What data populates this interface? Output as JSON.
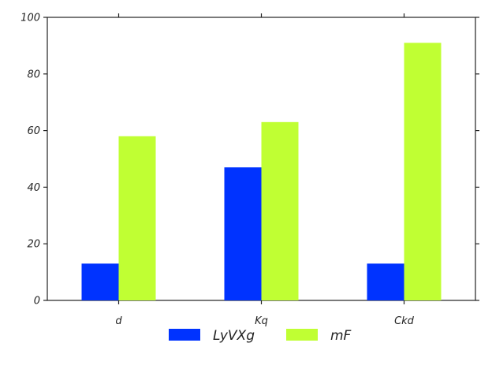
{
  "chart_data": {
    "type": "bar",
    "categories": [
      "d",
      "Kq",
      "Ckd"
    ],
    "series": [
      {
        "name": "LyVXg",
        "values": [
          13,
          47,
          13
        ],
        "color": "#0033ff"
      },
      {
        "name": "mF",
        "values": [
          58,
          63,
          91
        ],
        "color": "#c0ff33"
      }
    ],
    "ylim": [
      0,
      100
    ],
    "yticks": [
      0,
      20,
      40,
      60,
      80,
      100
    ],
    "ytick_labels": [
      "0",
      "20",
      "40",
      "60",
      "80",
      "100"
    ],
    "grid": false,
    "legend_position": "bottom-center",
    "title": "",
    "xlabel": "",
    "ylabel": ""
  }
}
